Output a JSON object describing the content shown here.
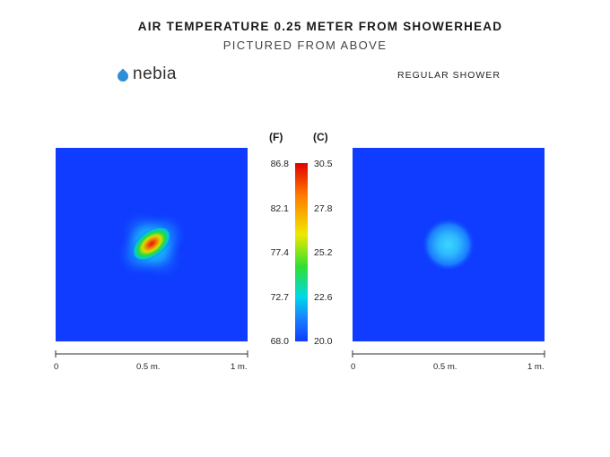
{
  "title": "AIR TEMPERATURE 0.25 METER FROM SHOWERHEAD",
  "subtitle": "PICTURED FROM ABOVE",
  "brand": {
    "name": "nebia",
    "color": "#2f8fd6"
  },
  "comparison_label": "REGULAR SHOWER",
  "colorbar": {
    "unit_f": "(F)",
    "unit_c": "(C)",
    "ticks_f": [
      "86.8",
      "82.1",
      "77.4",
      "72.7",
      "68.0"
    ],
    "ticks_c": [
      "30.5",
      "27.8",
      "25.2",
      "22.6",
      "20.0"
    ]
  },
  "x_axis_labels": [
    "0",
    "0.5 m.",
    "1 m."
  ],
  "chart_data": [
    {
      "type": "heatmap",
      "panel": "nebia",
      "xlim": [
        0,
        1
      ],
      "ylim": [
        0,
        1
      ],
      "value_range_c": [
        20.0,
        30.5
      ],
      "background_c": 20.0,
      "hotspot": {
        "center": [
          0.5,
          0.5
        ],
        "peak_c": 30.5,
        "radius_m": 0.07,
        "extent_m": 0.15
      }
    },
    {
      "type": "heatmap",
      "panel": "regular",
      "xlim": [
        0,
        1
      ],
      "ylim": [
        0,
        1
      ],
      "value_range_c": [
        20.0,
        30.5
      ],
      "background_c": 20.0,
      "hotspot": {
        "center": [
          0.5,
          0.5
        ],
        "peak_c": 22.0,
        "radius_m": 0.08
      }
    }
  ]
}
